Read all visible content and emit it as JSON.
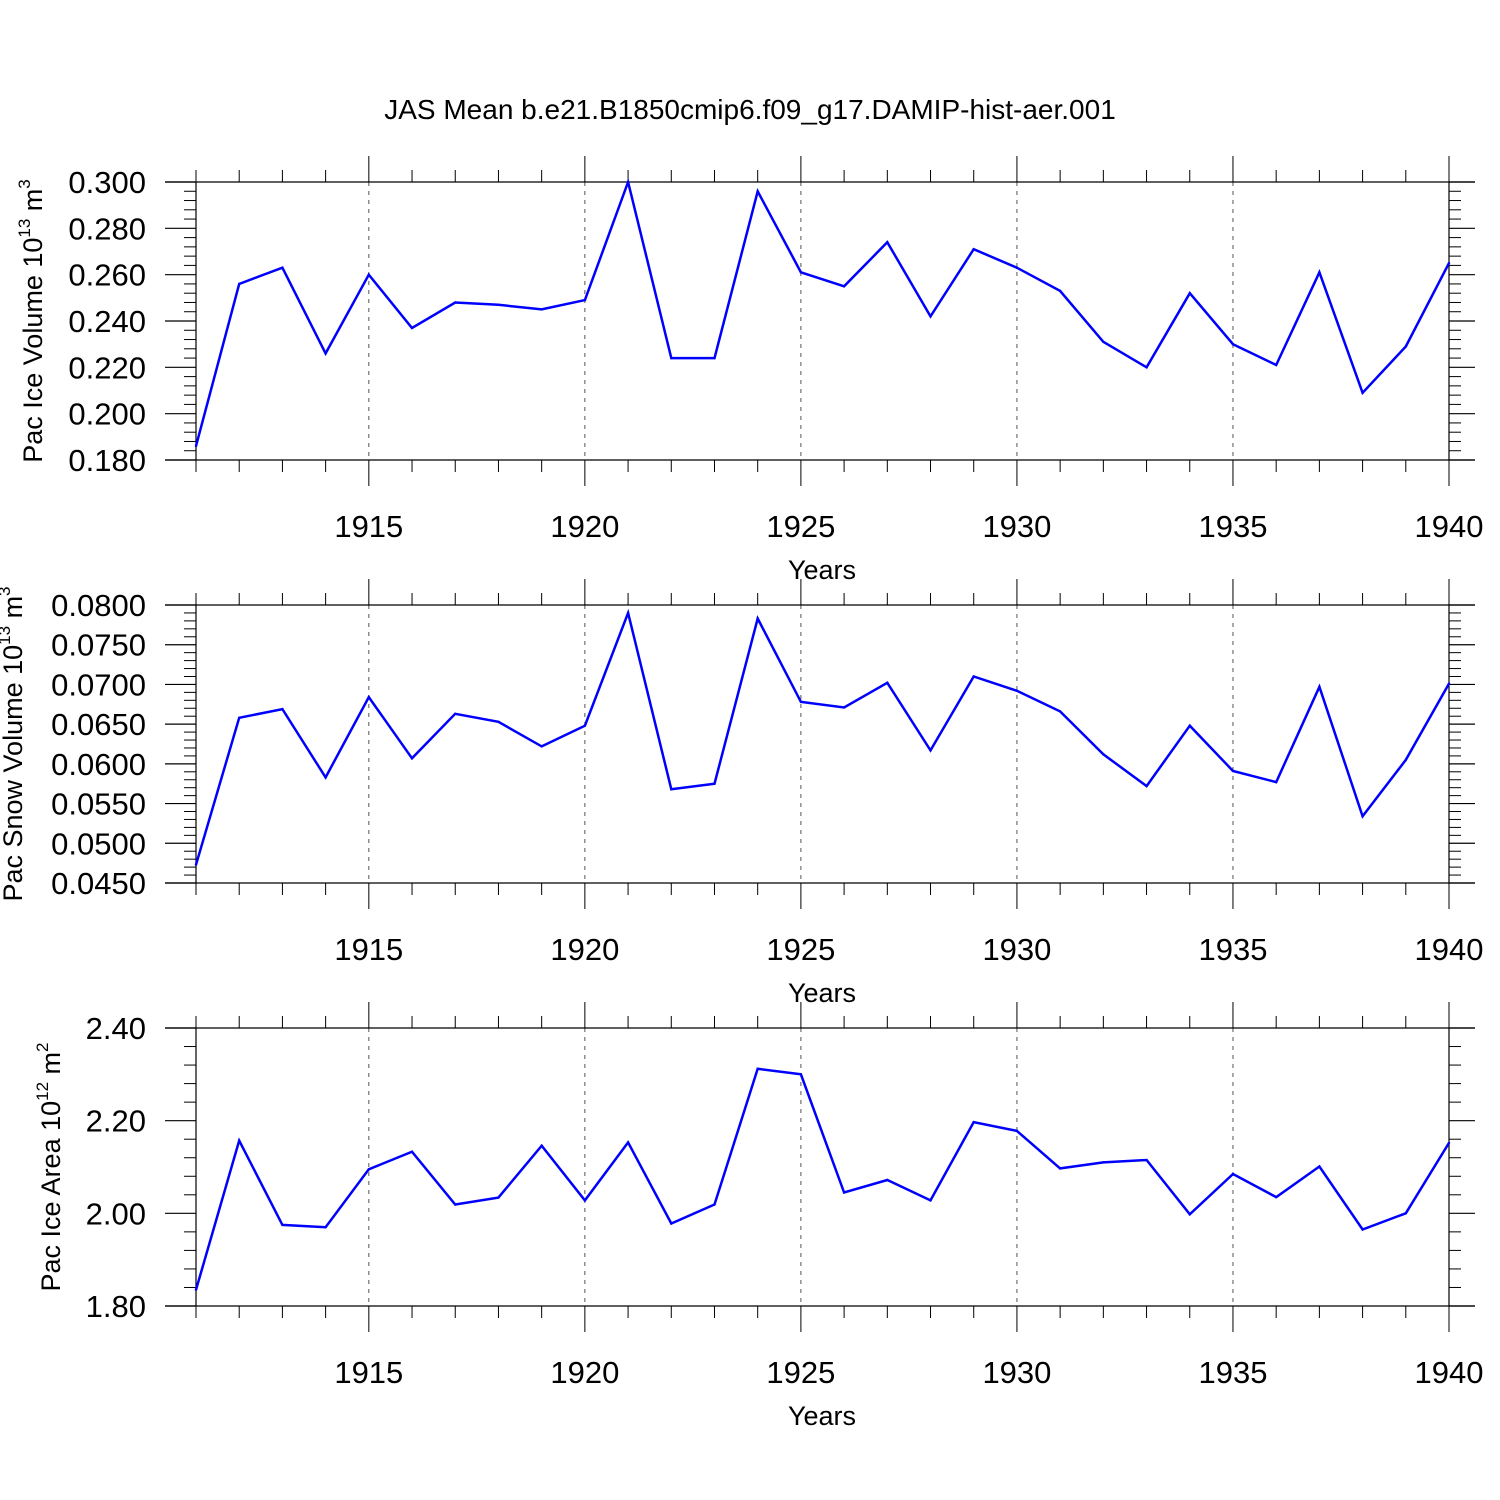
{
  "title": "JAS Mean b.e21.B1850cmip6.f09_g17.DAMIP-hist-aer.001",
  "colors": {
    "series": "#0000ff",
    "axes": "#000000",
    "grid": "#555555"
  },
  "chart_data": [
    {
      "type": "line",
      "title": "JAS Mean b.e21.B1850cmip6.f09_g17.DAMIP-hist-aer.001",
      "xlabel": "Years",
      "ylabel_main": "Pac Ice Volume 10",
      "ylabel_sup": "13",
      "ylabel_unit": "m",
      "ylabel_unit_sup": "3",
      "xlim": [
        1911,
        1940
      ],
      "ylim": [
        0.18,
        0.3
      ],
      "x_ticks": [
        1915,
        1920,
        1925,
        1930,
        1935,
        1940
      ],
      "x_tick_labels": [
        "1915",
        "1920",
        "1925",
        "1930",
        "1935",
        "1940"
      ],
      "y_ticks": [
        0.18,
        0.2,
        0.22,
        0.24,
        0.26,
        0.28,
        0.3
      ],
      "y_tick_labels": [
        "0.180",
        "0.200",
        "0.220",
        "0.240",
        "0.260",
        "0.280",
        "0.300"
      ],
      "grid": "vertical dashed at major x ticks",
      "x": [
        1911,
        1912,
        1913,
        1914,
        1915,
        1916,
        1917,
        1918,
        1919,
        1920,
        1921,
        1922,
        1923,
        1924,
        1925,
        1926,
        1927,
        1928,
        1929,
        1930,
        1931,
        1932,
        1933,
        1934,
        1935,
        1936,
        1937,
        1938,
        1939,
        1940
      ],
      "values": [
        0.186,
        0.256,
        0.263,
        0.226,
        0.26,
        0.237,
        0.248,
        0.247,
        0.245,
        0.249,
        0.3,
        0.224,
        0.224,
        0.296,
        0.261,
        0.255,
        0.274,
        0.242,
        0.271,
        0.263,
        0.253,
        0.231,
        0.22,
        0.252,
        0.23,
        0.221,
        0.261,
        0.209,
        0.229,
        0.265
      ]
    },
    {
      "type": "line",
      "xlabel": "Years",
      "ylabel_main": "Pac Snow Volume 10",
      "ylabel_sup": "13",
      "ylabel_unit": "m",
      "ylabel_unit_sup": "3",
      "xlim": [
        1911,
        1940
      ],
      "ylim": [
        0.045,
        0.08
      ],
      "x_ticks": [
        1915,
        1920,
        1925,
        1930,
        1935,
        1940
      ],
      "x_tick_labels": [
        "1915",
        "1920",
        "1925",
        "1930",
        "1935",
        "1940"
      ],
      "y_ticks": [
        0.045,
        0.05,
        0.055,
        0.06,
        0.065,
        0.07,
        0.075,
        0.08
      ],
      "y_tick_labels": [
        "0.0450",
        "0.0500",
        "0.0550",
        "0.0600",
        "0.0650",
        "0.0700",
        "0.0750",
        "0.0800"
      ],
      "grid": "vertical dashed at major x ticks",
      "x": [
        1911,
        1912,
        1913,
        1914,
        1915,
        1916,
        1917,
        1918,
        1919,
        1920,
        1921,
        1922,
        1923,
        1924,
        1925,
        1926,
        1927,
        1928,
        1929,
        1930,
        1931,
        1932,
        1933,
        1934,
        1935,
        1936,
        1937,
        1938,
        1939,
        1940
      ],
      "values": [
        0.0473,
        0.0658,
        0.0669,
        0.0583,
        0.0684,
        0.0607,
        0.0663,
        0.0653,
        0.0622,
        0.0648,
        0.079,
        0.0568,
        0.0575,
        0.0783,
        0.0678,
        0.0671,
        0.0702,
        0.0617,
        0.071,
        0.0692,
        0.0666,
        0.0612,
        0.0572,
        0.0648,
        0.0591,
        0.0577,
        0.0697,
        0.0534,
        0.0605,
        0.0701
      ]
    },
    {
      "type": "line",
      "xlabel": "Years",
      "ylabel_main": "Pac Ice Area 10",
      "ylabel_sup": "12",
      "ylabel_unit": "m",
      "ylabel_unit_sup": "2",
      "xlim": [
        1911,
        1940
      ],
      "ylim": [
        1.8,
        2.4
      ],
      "x_ticks": [
        1915,
        1920,
        1925,
        1930,
        1935,
        1940
      ],
      "x_tick_labels": [
        "1915",
        "1920",
        "1925",
        "1930",
        "1935",
        "1940"
      ],
      "y_ticks": [
        1.8,
        2.0,
        2.2,
        2.4
      ],
      "y_tick_labels": [
        "1.80",
        "2.00",
        "2.20",
        "2.40"
      ],
      "grid": "vertical dashed at major x ticks",
      "x": [
        1911,
        1912,
        1913,
        1914,
        1915,
        1916,
        1917,
        1918,
        1919,
        1920,
        1921,
        1922,
        1923,
        1924,
        1925,
        1926,
        1927,
        1928,
        1929,
        1930,
        1931,
        1932,
        1933,
        1934,
        1935,
        1936,
        1937,
        1938,
        1939,
        1940
      ],
      "values": [
        1.835,
        2.157,
        1.975,
        1.97,
        2.095,
        2.133,
        2.019,
        2.034,
        2.146,
        2.028,
        2.153,
        1.978,
        2.019,
        2.312,
        2.3,
        2.045,
        2.072,
        2.028,
        2.197,
        2.178,
        2.097,
        2.11,
        2.115,
        1.998,
        2.085,
        2.035,
        2.101,
        1.965,
        2.0,
        2.152
      ]
    }
  ]
}
